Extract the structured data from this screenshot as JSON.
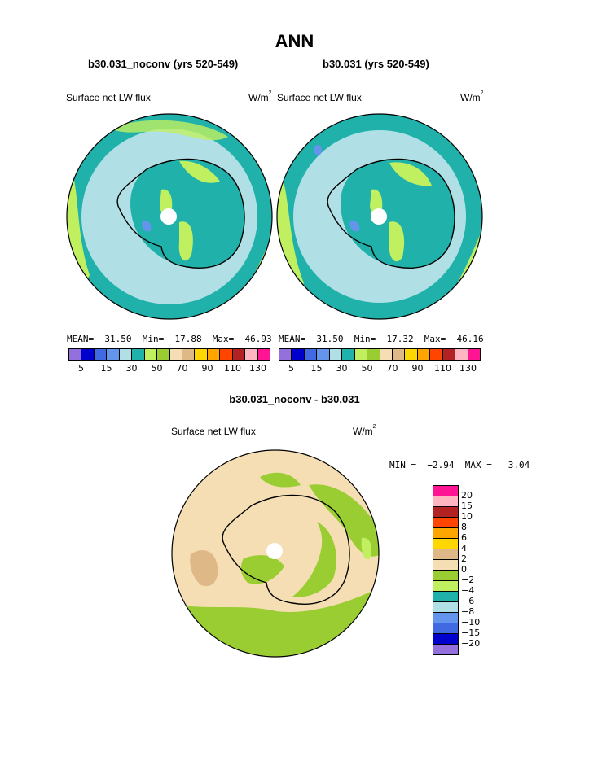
{
  "title": "ANN",
  "panels": [
    {
      "subtitle": "b30.031_noconv (yrs 520-549)",
      "variable": "Surface net LW flux",
      "units_base": "W/m",
      "units_exp": "2",
      "stats": "MEAN=  31.50  Min=  17.88  Max=  46.93"
    },
    {
      "subtitle": "b30.031 (yrs 520-549)",
      "variable": "Surface net LW flux",
      "units_base": "W/m",
      "units_exp": "2",
      "stats": "MEAN=  31.50  Min=  17.32  Max=  46.16"
    }
  ],
  "colorbar_top": {
    "colors": [
      "#9370db",
      "#0000cd",
      "#4169e1",
      "#6495ed",
      "#b0e0e6",
      "#20b2aa",
      "#c0f060",
      "#9acd32",
      "#f5deb3",
      "#deb887",
      "#ffd700",
      "#ffa500",
      "#ff4500",
      "#b22222",
      "#ffb6c1",
      "#ff1493"
    ],
    "ticks": [
      "5",
      "15",
      "30",
      "50",
      "70",
      "90",
      "110",
      "130"
    ]
  },
  "diff": {
    "subtitle": "b30.031_noconv - b30.031",
    "variable": "Surface net LW flux",
    "units_base": "W/m",
    "units_exp": "2",
    "stats": "MIN =  −2.94  MAX =   3.04"
  },
  "colorbar_diff": {
    "colors": [
      "#ff1493",
      "#ffb6c1",
      "#b22222",
      "#ff4500",
      "#ffa500",
      "#ffd700",
      "#deb887",
      "#f5deb3",
      "#9acd32",
      "#c0f060",
      "#20b2aa",
      "#b0e0e6",
      "#6495ed",
      "#4169e1",
      "#0000cd",
      "#9370db"
    ],
    "ticks": [
      "20",
      "15",
      "10",
      "8",
      "6",
      "4",
      "2",
      "0",
      "−2",
      "−4",
      "−6",
      "−8",
      "−10",
      "−15",
      "−20"
    ]
  }
}
